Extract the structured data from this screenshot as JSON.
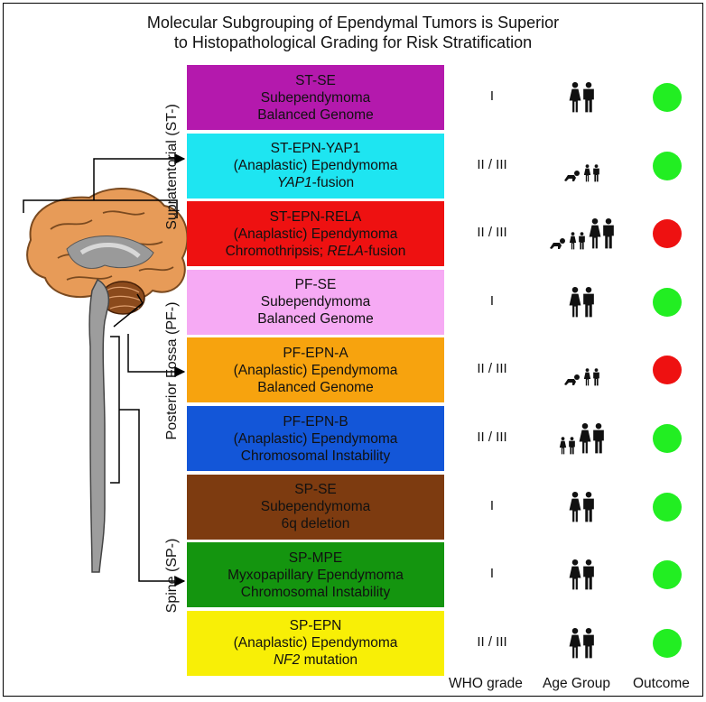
{
  "title": {
    "line1": "Molecular Subgrouping of Ependymal Tumors is Superior",
    "line2": "to Histopathological Grading for Risk Stratification"
  },
  "regions": {
    "supratentorial": "Supratentorial (ST-)",
    "posterior_fossa": "Posterior Fossa (PF-)",
    "spine": "Spine (SP-)"
  },
  "column_headers": {
    "who_grade": "WHO grade",
    "age_group": "Age Group",
    "outcome": "Outcome"
  },
  "colors": {
    "favorable_outcome": "#22ee22",
    "poor_outcome": "#ee1111"
  },
  "subgroups": [
    {
      "name": "ST-SE",
      "histology": "Subependymoma",
      "genetics_pre": "",
      "genetics_italic": "",
      "genetics_post": "Balanced Genome",
      "color": "#b419ad",
      "who_grade": "I",
      "age_groups": [
        "adult"
      ],
      "outcome": "favorable"
    },
    {
      "name": "ST-EPN-YAP1",
      "histology": "(Anaplastic) Ependymoma",
      "genetics_pre": "",
      "genetics_italic": "YAP1",
      "genetics_post": "-fusion",
      "color": "#1ee5f1",
      "who_grade": "II / III",
      "age_groups": [
        "infant",
        "child"
      ],
      "outcome": "favorable"
    },
    {
      "name": "ST-EPN-RELA",
      "histology": "(Anaplastic) Ependymoma",
      "genetics_pre": "Chromothripsis; ",
      "genetics_italic": "RELA",
      "genetics_post": "-fusion",
      "color": "#ee1111",
      "who_grade": "II / III",
      "age_groups": [
        "infant",
        "child",
        "adult"
      ],
      "outcome": "poor"
    },
    {
      "name": "PF-SE",
      "histology": "Subependymoma",
      "genetics_pre": "",
      "genetics_italic": "",
      "genetics_post": "Balanced Genome",
      "color": "#f6aaf4",
      "who_grade": "I",
      "age_groups": [
        "adult"
      ],
      "outcome": "favorable"
    },
    {
      "name": "PF-EPN-A",
      "histology": "(Anaplastic) Ependymoma",
      "genetics_pre": "",
      "genetics_italic": "",
      "genetics_post": "Balanced Genome",
      "color": "#f7a30e",
      "who_grade": "II / III",
      "age_groups": [
        "infant",
        "child"
      ],
      "outcome": "poor"
    },
    {
      "name": "PF-EPN-B",
      "histology": "(Anaplastic) Ependymoma",
      "genetics_pre": "",
      "genetics_italic": "",
      "genetics_post": "Chromosomal Instability",
      "color": "#1356d8",
      "who_grade": "II / III",
      "age_groups": [
        "child",
        "adult"
      ],
      "outcome": "favorable"
    },
    {
      "name": "SP-SE",
      "histology": "Subependymoma",
      "genetics_pre": "",
      "genetics_italic": "",
      "genetics_post": "6q deletion",
      "color": "#7d3b10",
      "who_grade": "I",
      "age_groups": [
        "adult"
      ],
      "outcome": "favorable"
    },
    {
      "name": "SP-MPE",
      "histology": "Myxopapillary Ependymoma",
      "genetics_pre": "",
      "genetics_italic": "",
      "genetics_post": "Chromosomal Instability",
      "color": "#14950f",
      "who_grade": "I",
      "age_groups": [
        "adult"
      ],
      "outcome": "favorable"
    },
    {
      "name": "SP-EPN",
      "histology": "(Anaplastic) Ependymoma",
      "genetics_pre": "",
      "genetics_italic": "NF2",
      "genetics_post": " mutation",
      "color": "#f8ef06",
      "who_grade": "II / III",
      "age_groups": [
        "adult"
      ],
      "outcome": "favorable"
    }
  ]
}
